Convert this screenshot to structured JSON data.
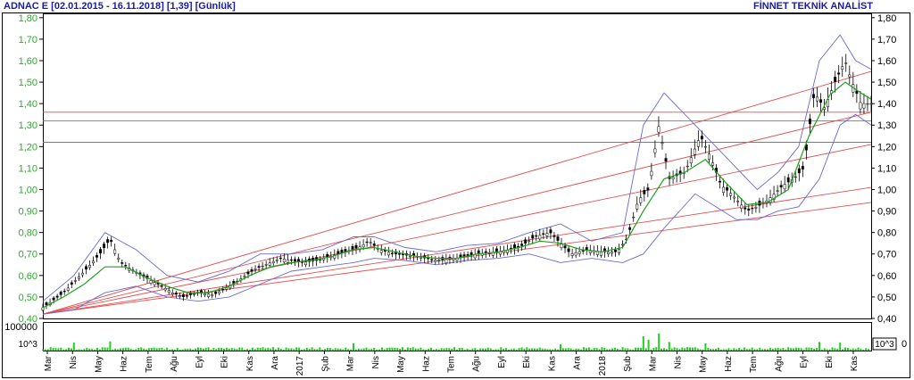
{
  "header": {
    "left": "ADNAC E  [02.01.2015 - 16.11.2018]  [1,39]  [Günlük]",
    "right": "FİNNET TEKNİK ANALİST"
  },
  "colors": {
    "frame": "#000000",
    "price_axis_left": "#2ea82e",
    "price_axis_right": "#000000",
    "candles": "#000000",
    "moving_average": "#1fa11f",
    "bollinger": "#6a6ad0",
    "trendlines": "#e05050",
    "volume": "#22cc22",
    "header": "#1a1aa6"
  },
  "volume_panel": {
    "scale_top": "100000",
    "unit_left": "10^3",
    "unit_right": "10^3",
    "zero": "0"
  },
  "chart_data": [
    {
      "type": "candlestick",
      "y_ticks": [
        "0,40",
        "0,50",
        "0,60",
        "0,70",
        "0,80",
        "0,90",
        "1,00",
        "1,10",
        "1,20",
        "1,30",
        "1,40",
        "1,50",
        "1,60",
        "1,70",
        "1,80"
      ],
      "ylim": [
        0.4,
        1.82
      ],
      "x_ticks": [
        "Mar",
        "Nis",
        "May",
        "Haz",
        "Tem",
        "Ağu",
        "Eyl",
        "Eki",
        "Kas",
        "Ara",
        "2017",
        "Şub",
        "Mar",
        "Nis",
        "May",
        "Haz",
        "Tem",
        "Ağu",
        "Eyl",
        "Eki",
        "Kas",
        "Ara",
        "2018",
        "Şub",
        "Mar",
        "Nis",
        "May",
        "Haz",
        "Tem",
        "Ağu",
        "Eyl",
        "Eki",
        "Kas"
      ],
      "close": [
        [
          0,
          0.45
        ],
        [
          4,
          0.52
        ],
        [
          8,
          0.62
        ],
        [
          11,
          0.7
        ],
        [
          13,
          0.77
        ],
        [
          15,
          0.66
        ],
        [
          19,
          0.6
        ],
        [
          23,
          0.55
        ],
        [
          25,
          0.52
        ],
        [
          27,
          0.5
        ],
        [
          30,
          0.52
        ],
        [
          33,
          0.51
        ],
        [
          36,
          0.55
        ],
        [
          38,
          0.58
        ],
        [
          41,
          0.63
        ],
        [
          44,
          0.66
        ],
        [
          46,
          0.68
        ],
        [
          50,
          0.66
        ],
        [
          53,
          0.67
        ],
        [
          57,
          0.7
        ],
        [
          61,
          0.73
        ],
        [
          63,
          0.76
        ],
        [
          65,
          0.72
        ],
        [
          68,
          0.7
        ],
        [
          72,
          0.69
        ],
        [
          76,
          0.67
        ],
        [
          80,
          0.68
        ],
        [
          84,
          0.7
        ],
        [
          88,
          0.71
        ],
        [
          92,
          0.73
        ],
        [
          95,
          0.78
        ],
        [
          98,
          0.8
        ],
        [
          100,
          0.75
        ],
        [
          102,
          0.7
        ],
        [
          105,
          0.72
        ],
        [
          108,
          0.71
        ],
        [
          111,
          0.71
        ],
        [
          113,
          0.78
        ],
        [
          115,
          0.95
        ],
        [
          117,
          1.0
        ],
        [
          119,
          1.3
        ],
        [
          121,
          1.05
        ],
        [
          124,
          1.08
        ],
        [
          127,
          1.25
        ],
        [
          129,
          1.15
        ],
        [
          131,
          1.02
        ],
        [
          133,
          0.98
        ],
        [
          136,
          0.9
        ],
        [
          138,
          0.92
        ],
        [
          140,
          0.95
        ],
        [
          143,
          1.02
        ],
        [
          145,
          1.05
        ],
        [
          147,
          1.1
        ],
        [
          149,
          1.45
        ],
        [
          151,
          1.38
        ],
        [
          153,
          1.5
        ],
        [
          155,
          1.6
        ],
        [
          156,
          1.52
        ],
        [
          158,
          1.4
        ],
        [
          160,
          1.4
        ]
      ],
      "moving_average": [
        [
          0,
          0.45
        ],
        [
          4,
          0.5
        ],
        [
          8,
          0.56
        ],
        [
          12,
          0.64
        ],
        [
          16,
          0.64
        ],
        [
          20,
          0.59
        ],
        [
          24,
          0.55
        ],
        [
          28,
          0.52
        ],
        [
          32,
          0.52
        ],
        [
          36,
          0.55
        ],
        [
          40,
          0.6
        ],
        [
          44,
          0.64
        ],
        [
          48,
          0.66
        ],
        [
          52,
          0.67
        ],
        [
          56,
          0.69
        ],
        [
          60,
          0.72
        ],
        [
          64,
          0.73
        ],
        [
          68,
          0.71
        ],
        [
          72,
          0.69
        ],
        [
          76,
          0.68
        ],
        [
          80,
          0.68
        ],
        [
          84,
          0.7
        ],
        [
          88,
          0.71
        ],
        [
          92,
          0.73
        ],
        [
          96,
          0.76
        ],
        [
          100,
          0.75
        ],
        [
          104,
          0.72
        ],
        [
          108,
          0.71
        ],
        [
          112,
          0.73
        ],
        [
          116,
          0.9
        ],
        [
          120,
          1.05
        ],
        [
          124,
          1.08
        ],
        [
          128,
          1.14
        ],
        [
          132,
          1.03
        ],
        [
          136,
          0.93
        ],
        [
          140,
          0.94
        ],
        [
          144,
          1.0
        ],
        [
          148,
          1.25
        ],
        [
          152,
          1.44
        ],
        [
          155,
          1.5
        ],
        [
          158,
          1.45
        ],
        [
          160,
          1.42
        ]
      ],
      "bollinger_upper": [
        [
          0,
          0.48
        ],
        [
          6,
          0.6
        ],
        [
          12,
          0.8
        ],
        [
          18,
          0.72
        ],
        [
          24,
          0.6
        ],
        [
          30,
          0.57
        ],
        [
          36,
          0.62
        ],
        [
          42,
          0.7
        ],
        [
          48,
          0.7
        ],
        [
          54,
          0.72
        ],
        [
          60,
          0.78
        ],
        [
          64,
          0.78
        ],
        [
          70,
          0.73
        ],
        [
          76,
          0.71
        ],
        [
          82,
          0.74
        ],
        [
          88,
          0.75
        ],
        [
          94,
          0.8
        ],
        [
          100,
          0.84
        ],
        [
          106,
          0.76
        ],
        [
          112,
          0.8
        ],
        [
          116,
          1.3
        ],
        [
          120,
          1.45
        ],
        [
          126,
          1.3
        ],
        [
          130,
          1.2
        ],
        [
          134,
          1.1
        ],
        [
          138,
          1.0
        ],
        [
          142,
          1.08
        ],
        [
          146,
          1.2
        ],
        [
          150,
          1.6
        ],
        [
          154,
          1.72
        ],
        [
          157,
          1.6
        ],
        [
          160,
          1.56
        ]
      ],
      "bollinger_lower": [
        [
          0,
          0.42
        ],
        [
          6,
          0.44
        ],
        [
          12,
          0.52
        ],
        [
          18,
          0.55
        ],
        [
          24,
          0.5
        ],
        [
          30,
          0.48
        ],
        [
          36,
          0.5
        ],
        [
          42,
          0.56
        ],
        [
          48,
          0.62
        ],
        [
          54,
          0.64
        ],
        [
          60,
          0.66
        ],
        [
          64,
          0.68
        ],
        [
          70,
          0.67
        ],
        [
          76,
          0.65
        ],
        [
          82,
          0.67
        ],
        [
          88,
          0.68
        ],
        [
          94,
          0.7
        ],
        [
          100,
          0.66
        ],
        [
          106,
          0.68
        ],
        [
          112,
          0.66
        ],
        [
          116,
          0.7
        ],
        [
          120,
          0.82
        ],
        [
          126,
          0.98
        ],
        [
          130,
          0.92
        ],
        [
          134,
          0.86
        ],
        [
          138,
          0.86
        ],
        [
          142,
          0.9
        ],
        [
          146,
          0.92
        ],
        [
          150,
          1.05
        ],
        [
          154,
          1.3
        ],
        [
          157,
          1.35
        ],
        [
          160,
          1.3
        ]
      ],
      "support_resistance": [
        1.22,
        1.32,
        1.36
      ],
      "trendlines": [
        [
          [
            0,
            0.42
          ],
          [
            160,
            1.55
          ]
        ],
        [
          [
            0,
            0.42
          ],
          [
            160,
            1.36
          ]
        ],
        [
          [
            0,
            0.42
          ],
          [
            160,
            1.21
          ]
        ],
        [
          [
            0,
            0.42
          ],
          [
            160,
            1.01
          ]
        ],
        [
          [
            0,
            0.42
          ],
          [
            160,
            0.94
          ]
        ]
      ]
    },
    {
      "type": "bar",
      "title": "volume",
      "ylim": [
        0,
        100000
      ],
      "spikes": [
        [
          6,
          28000
        ],
        [
          13,
          32000
        ],
        [
          60,
          26000
        ],
        [
          100,
          22000
        ],
        [
          116,
          50000
        ],
        [
          117,
          38000
        ],
        [
          119,
          60000
        ],
        [
          121,
          30000
        ],
        [
          128,
          25000
        ],
        [
          150,
          30000
        ],
        [
          154,
          28000
        ]
      ]
    }
  ]
}
